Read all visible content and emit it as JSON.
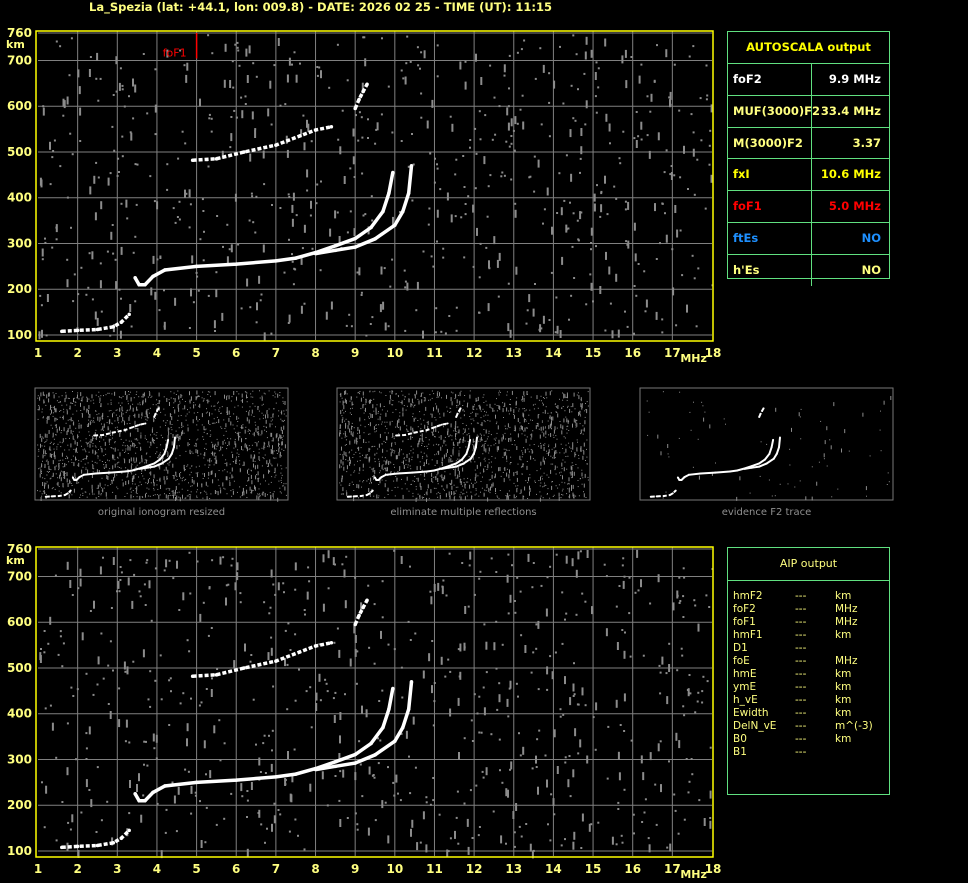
{
  "title": "La_Spezia (lat: +44.1, lon: 009.8) - DATE: 2026 02 25 - TIME (UT): 11:15",
  "autoscala": {
    "header": "AUTOSCALA output",
    "rows": [
      {
        "label": "foF2",
        "value": "9.9 MHz",
        "color": "#ffffff"
      },
      {
        "label": "MUF(3000)F2",
        "value": "33.4 MHz",
        "color": "#ffff80"
      },
      {
        "label": "M(3000)F2",
        "value": "3.37",
        "color": "#ffff80"
      },
      {
        "label": "fxI",
        "value": "10.6 MHz",
        "color": "#ffff00"
      },
      {
        "label": "foF1",
        "value": "5.0 MHz",
        "color": "#ff0000"
      },
      {
        "label": "ftEs",
        "value": "NO",
        "color": "#1e90ff"
      },
      {
        "label": "h'Es",
        "value": "NO",
        "color": "#ffff80"
      }
    ]
  },
  "aip": {
    "header": "AIP output",
    "rows": [
      {
        "label": "hmF2",
        "value": "---",
        "unit": "km"
      },
      {
        "label": "foF2",
        "value": "---",
        "unit": "MHz"
      },
      {
        "label": "foF1",
        "value": "---",
        "unit": "MHz"
      },
      {
        "label": "hmF1",
        "value": "---",
        "unit": "km"
      },
      {
        "label": "D1",
        "value": "---",
        "unit": ""
      },
      {
        "label": "foE",
        "value": "---",
        "unit": "MHz"
      },
      {
        "label": "hmE",
        "value": "---",
        "unit": "km"
      },
      {
        "label": "ymE",
        "value": "---",
        "unit": "km"
      },
      {
        "label": "h_vE",
        "value": "---",
        "unit": "km"
      },
      {
        "label": "Ewidth",
        "value": "---",
        "unit": "km"
      },
      {
        "label": "DelN_vE",
        "value": "---",
        "unit": "m^(-3)"
      },
      {
        "label": "B0",
        "value": "---",
        "unit": "km"
      },
      {
        "label": "B1",
        "value": "---",
        "unit": ""
      }
    ]
  },
  "thumbnails": [
    {
      "caption": "original ionogram resized"
    },
    {
      "caption": "eliminate multiple reflections"
    },
    {
      "caption": "evidence F2 trace"
    }
  ],
  "chart_data": {
    "type": "scatter",
    "xlabel": "MHz",
    "ylabel": "km",
    "xlim": [
      1,
      18
    ],
    "ylim": [
      100,
      760
    ],
    "xticks": [
      "1",
      "2",
      "3",
      "4",
      "5",
      "6",
      "7",
      "8",
      "9",
      "10",
      "11",
      "12",
      "13",
      "14",
      "15",
      "16",
      "17",
      "18"
    ],
    "yticks": [
      "760",
      "700",
      "600",
      "500",
      "400",
      "300",
      "200",
      "100"
    ],
    "grid": true,
    "colors": {
      "frame": "#ffff00",
      "grid": "#808080",
      "trace": "#ffffff",
      "noise": "#8c8c8c",
      "marker": "#ff0000"
    },
    "marker": {
      "label": "foF1",
      "x": 5.0
    },
    "series": [
      {
        "points": [
          [
            1.6,
            108
          ],
          [
            2.0,
            110
          ],
          [
            2.5,
            112
          ],
          [
            2.9,
            118
          ],
          [
            3.1,
            128
          ],
          [
            3.3,
            145
          ]
        ]
      },
      {
        "points": [
          [
            3.45,
            225
          ],
          [
            3.55,
            210
          ],
          [
            3.7,
            210
          ],
          [
            3.9,
            228
          ],
          [
            4.2,
            242
          ],
          [
            5,
            250
          ],
          [
            6,
            255
          ],
          [
            7,
            262
          ],
          [
            7.5,
            268
          ],
          [
            8,
            280
          ],
          [
            8.5,
            295
          ],
          [
            9,
            311
          ],
          [
            9.4,
            335
          ],
          [
            9.7,
            370
          ],
          [
            9.85,
            410
          ],
          [
            9.95,
            455
          ]
        ]
      },
      {
        "points": [
          [
            8,
            278
          ],
          [
            8.5,
            285
          ],
          [
            9,
            292
          ],
          [
            9.5,
            310
          ],
          [
            10,
            340
          ],
          [
            10.2,
            370
          ],
          [
            10.35,
            410
          ],
          [
            10.42,
            470
          ]
        ]
      },
      {
        "points": [
          [
            4.9,
            482
          ],
          [
            5.5,
            485
          ],
          [
            6.2,
            500
          ],
          [
            7,
            515
          ],
          [
            7.6,
            535
          ],
          [
            8.0,
            548
          ],
          [
            8.4,
            555
          ]
        ]
      },
      {
        "points": [
          [
            9.0,
            595
          ],
          [
            9.1,
            615
          ],
          [
            9.2,
            632
          ],
          [
            9.3,
            648
          ]
        ]
      }
    ]
  }
}
